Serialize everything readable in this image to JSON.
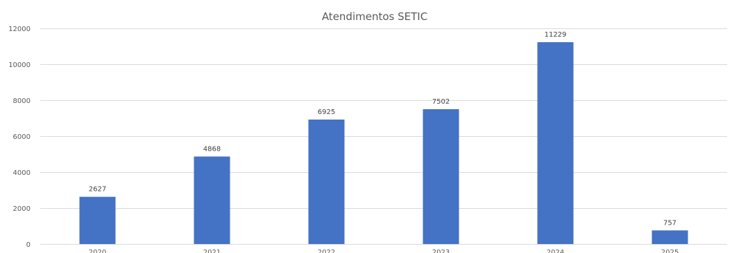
{
  "chart_data": {
    "type": "bar",
    "title": "Atendimentos SETIC",
    "xlabel": "",
    "ylabel": "",
    "categories": [
      "2020",
      "2021",
      "2022",
      "2023",
      "2024",
      "2025"
    ],
    "values": [
      2627,
      4868,
      6925,
      7502,
      11229,
      757
    ],
    "ylim": [
      0,
      12000
    ],
    "y_ticks": [
      0,
      2000,
      4000,
      6000,
      8000,
      10000,
      12000
    ],
    "grid": true,
    "legend": "none",
    "bar_color": "#4472c4",
    "data_labels": true
  }
}
